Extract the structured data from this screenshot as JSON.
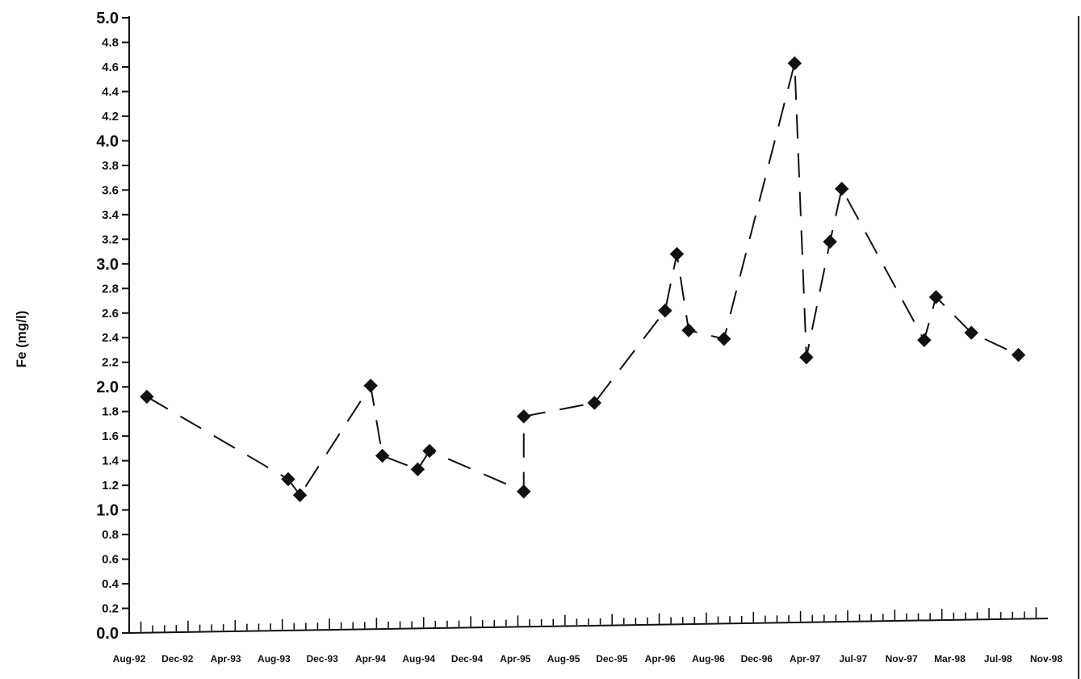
{
  "chart_data": {
    "type": "line",
    "title": "",
    "xlabel": "",
    "ylabel": "Fe (mg/l)",
    "ylim": [
      0,
      5.0
    ],
    "y_ticks": [
      "0.0",
      "0.2",
      "0.4",
      "0.6",
      "0.8",
      "1.0",
      "1.2",
      "1.4",
      "1.6",
      "1.8",
      "2.0",
      "2.2",
      "2.4",
      "2.6",
      "2.8",
      "3.0",
      "3.2",
      "3.4",
      "3.6",
      "3.8",
      "4.0",
      "4.2",
      "4.4",
      "4.6",
      "4.8",
      "5.0"
    ],
    "x_ticks": [
      "Aug-92",
      "Dec-92",
      "Apr-93",
      "Aug-93",
      "Dec-93",
      "Apr-94",
      "Aug-94",
      "Dec-94",
      "Apr-95",
      "Aug-95",
      "Dec-95",
      "Apr-96",
      "Aug-96",
      "Dec-96",
      "Apr-97",
      "Jul-97",
      "Nov-97",
      "Mar-98",
      "Jul-98",
      "Nov-98"
    ],
    "xlim": [
      "1992-07",
      "1998-12"
    ],
    "grid": false,
    "line_style": "dashed",
    "marker": "diamond",
    "series": [
      {
        "x": [
          "1992-08",
          "1993-08",
          "1993-09",
          "1994-03",
          "1994-04",
          "1994-07",
          "1994-08",
          "1995-04",
          "1995-04",
          "1995-10",
          "1996-04",
          "1996-05",
          "1996-06",
          "1996-09",
          "1997-03",
          "1997-04",
          "1997-06",
          "1997-07",
          "1998-02",
          "1998-03",
          "1998-06",
          "1998-10"
        ],
        "values": [
          1.92,
          1.25,
          1.12,
          2.01,
          1.44,
          1.33,
          1.48,
          1.15,
          1.76,
          1.87,
          2.62,
          3.08,
          2.46,
          2.39,
          4.63,
          2.24,
          3.18,
          3.61,
          2.38,
          2.73,
          2.44,
          2.26
        ],
        "color": "#111111"
      }
    ]
  }
}
